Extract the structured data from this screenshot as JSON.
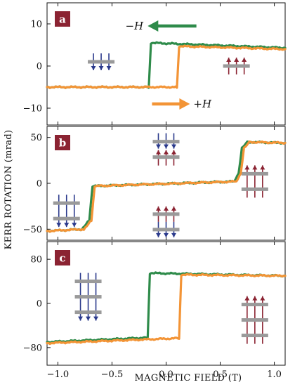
{
  "figure": {
    "xlabel": "MAGNETIC FIELD (T)",
    "ylabel": "KERR ROTATION (mrad)",
    "colors": {
      "down_sweep": "#2e8b4a",
      "up_sweep": "#f39436",
      "spin_down": "#2b3a8c",
      "spin_up": "#8b2332",
      "layer": "#9a9a9a",
      "badge": "#8b2332"
    }
  },
  "chart_data": [
    {
      "type": "line",
      "panel": "a",
      "xlim": [
        -1.1,
        1.1
      ],
      "ylim": [
        -14,
        15
      ],
      "yticks": [
        -10,
        0,
        10
      ],
      "xticks": [
        -1.0,
        -0.5,
        0.0,
        0.5,
        1.0
      ],
      "annotations": [
        {
          "text": "−H",
          "arrow_direction": "left",
          "color": "#2e8b4a"
        },
        {
          "text": "+H",
          "arrow_direction": "right",
          "color": "#f39436"
        }
      ],
      "spin_stacks": [
        {
          "x": -0.6,
          "y": 1,
          "layers": 1,
          "direction": "down"
        },
        {
          "x": 0.65,
          "y": 0,
          "layers": 1,
          "direction": "up"
        }
      ],
      "series": [
        {
          "color": "#2e8b4a",
          "x": [
            -1.1,
            -0.16,
            -0.14,
            1.1
          ],
          "y": [
            -5,
            -5,
            5.5,
            4.3
          ]
        },
        {
          "color": "#f39436",
          "x": [
            -1.1,
            0.1,
            0.12,
            1.1
          ],
          "y": [
            -5,
            -5,
            4.7,
            4
          ]
        }
      ]
    },
    {
      "type": "line",
      "panel": "b",
      "xlim": [
        -1.1,
        1.1
      ],
      "ylim": [
        -62,
        62
      ],
      "yticks": [
        -50,
        0,
        50
      ],
      "xticks": [
        -1.0,
        -0.5,
        0.0,
        0.5,
        1.0
      ],
      "spin_stacks": [
        {
          "x": -0.92,
          "y": -30,
          "layers": 2,
          "direction": "down"
        },
        {
          "x": 0.0,
          "y": 37,
          "layers": 2,
          "direction": "down-up"
        },
        {
          "x": 0.0,
          "y": -42,
          "layers": 2,
          "direction": "up-down"
        },
        {
          "x": 0.82,
          "y": 2,
          "layers": 2,
          "direction": "up"
        }
      ],
      "series": [
        {
          "color": "#2e8b4a",
          "x": [
            -1.1,
            -0.78,
            -0.71,
            -0.68,
            0.63,
            0.67,
            0.7,
            0.75,
            1.1
          ],
          "y": [
            -52,
            -50,
            -40,
            -3,
            2,
            10,
            38,
            45,
            44
          ]
        },
        {
          "color": "#f39436",
          "x": [
            -1.1,
            -0.76,
            -0.69,
            -0.66,
            0.65,
            0.69,
            0.72,
            0.77,
            1.1
          ],
          "y": [
            -52,
            -50,
            -40,
            -3,
            2,
            10,
            38,
            45,
            44
          ]
        }
      ]
    },
    {
      "type": "line",
      "panel": "c",
      "xlim": [
        -1.1,
        1.1
      ],
      "ylim": [
        -112,
        112
      ],
      "yticks": [
        -80,
        0,
        80
      ],
      "xticks": [
        -1.0,
        -0.5,
        0.0,
        0.5,
        1.0
      ],
      "spin_stacks": [
        {
          "x": -0.72,
          "y": 12,
          "layers": 3,
          "direction": "down"
        },
        {
          "x": 0.82,
          "y": -30,
          "layers": 3,
          "direction": "up"
        }
      ],
      "series": [
        {
          "color": "#2e8b4a",
          "x": [
            -1.1,
            -0.17,
            -0.15,
            1.1
          ],
          "y": [
            -70,
            -62,
            55,
            50
          ]
        },
        {
          "color": "#f39436",
          "x": [
            -1.1,
            0.12,
            0.14,
            1.1
          ],
          "y": [
            -72,
            -63,
            52,
            50
          ]
        }
      ]
    }
  ]
}
